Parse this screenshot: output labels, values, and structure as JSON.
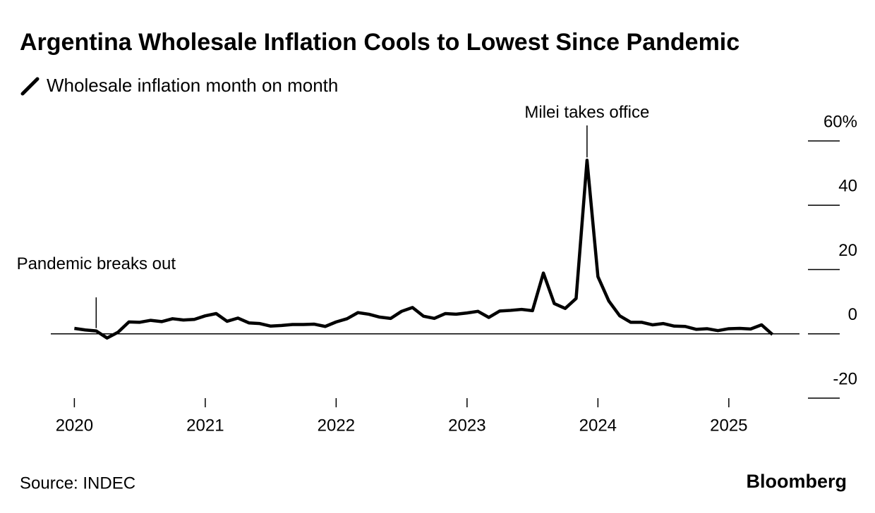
{
  "chart_data": {
    "type": "line",
    "title": "Argentina Wholesale Inflation Cools to Lowest Since Pandemic",
    "source": "Source: INDEC",
    "brand": "Bloomberg",
    "x": [
      "2020-01",
      "2020-02",
      "2020-03",
      "2020-04",
      "2020-05",
      "2020-06",
      "2020-07",
      "2020-08",
      "2020-09",
      "2020-10",
      "2020-11",
      "2020-12",
      "2021-01",
      "2021-02",
      "2021-03",
      "2021-04",
      "2021-05",
      "2021-06",
      "2021-07",
      "2021-08",
      "2021-09",
      "2021-10",
      "2021-11",
      "2021-12",
      "2022-01",
      "2022-02",
      "2022-03",
      "2022-04",
      "2022-05",
      "2022-06",
      "2022-07",
      "2022-08",
      "2022-09",
      "2022-10",
      "2022-11",
      "2022-12",
      "2023-01",
      "2023-02",
      "2023-03",
      "2023-04",
      "2023-05",
      "2023-06",
      "2023-07",
      "2023-08",
      "2023-09",
      "2023-10",
      "2023-11",
      "2023-12",
      "2024-01",
      "2024-02",
      "2024-03",
      "2024-04",
      "2024-05",
      "2024-06",
      "2024-07",
      "2024-08",
      "2024-09",
      "2024-10",
      "2024-11",
      "2024-12",
      "2025-01",
      "2025-02",
      "2025-03",
      "2025-04",
      "2025-05"
    ],
    "series": [
      {
        "name": "Wholesale inflation month on month",
        "color": "#000000",
        "values": [
          1.7,
          1.2,
          0.9,
          -1.3,
          0.5,
          3.7,
          3.6,
          4.2,
          3.8,
          4.7,
          4.3,
          4.5,
          5.6,
          6.3,
          3.9,
          4.9,
          3.4,
          3.2,
          2.4,
          2.6,
          2.9,
          2.9,
          3.0,
          2.3,
          3.7,
          4.7,
          6.6,
          6.1,
          5.2,
          4.8,
          7.0,
          8.2,
          5.5,
          4.8,
          6.3,
          6.1,
          6.5,
          7.0,
          5.1,
          7.1,
          7.3,
          7.6,
          7.2,
          18.9,
          9.4,
          7.9,
          11.0,
          54.0,
          17.8,
          10.2,
          5.6,
          3.6,
          3.6,
          2.8,
          3.2,
          2.4,
          2.3,
          1.4,
          1.6,
          1.0,
          1.6,
          1.7,
          1.5,
          2.8,
          -0.2
        ]
      }
    ],
    "xlim": [
      2019.82,
      2025.54
    ],
    "xticks": [
      2020,
      2021,
      2022,
      2023,
      2024,
      2025
    ],
    "ylim": [
      -20,
      60
    ],
    "yticks": [
      -20,
      0,
      20,
      40,
      {
        "value": 60,
        "label": "60%"
      }
    ],
    "annotations": [
      {
        "text": "Pandemic breaks out",
        "x": "2020-03"
      },
      {
        "text": "Milei takes office",
        "x": "2023-12"
      }
    ]
  }
}
